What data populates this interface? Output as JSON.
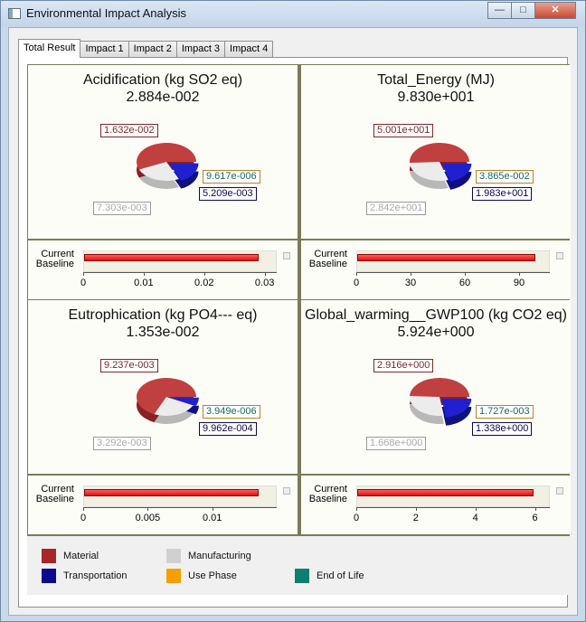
{
  "window": {
    "title": "Environmental Impact Analysis"
  },
  "tabs": [
    "Total Result",
    "Impact 1",
    "Impact 2",
    "Impact 3",
    "Impact 4"
  ],
  "colors": {
    "Material": "#a82828",
    "Manufacturing": "#d0d0d0",
    "Transportation": "#0a0a90",
    "Use Phase": "#f5a000",
    "End of Life": "#0a8070"
  },
  "legend": [
    {
      "label": "Material",
      "color": "#a82828"
    },
    {
      "label": "Manufacturing",
      "color": "#d0d0d0"
    },
    {
      "label": "Transportation",
      "color": "#0a0a90"
    },
    {
      "label": "Use Phase",
      "color": "#f5a000"
    },
    {
      "label": "End of Life",
      "color": "#0a8070"
    }
  ],
  "chart_data": [
    {
      "type": "pie",
      "title": "Acidification (kg SO2 eq)",
      "total": "2.884e-002",
      "slices": [
        {
          "category": "Material",
          "label": "1.632e-002",
          "value": 0.01632
        },
        {
          "category": "Manufacturing",
          "label": "7.303e-003",
          "value": 0.007303
        },
        {
          "category": "Transportation",
          "label": "5.209e-003",
          "value": 0.005209
        },
        {
          "category": "End of Life",
          "label": "9.617e-006",
          "value": 9.617e-06
        }
      ],
      "bar": {
        "type": "bar",
        "categories": [
          "Current",
          "Baseline"
        ],
        "values": [
          0.02884,
          null
        ],
        "xlim": [
          0,
          0.032
        ],
        "ticks": [
          "0",
          "0.01",
          "0.02",
          "0.03"
        ],
        "tickvals": [
          0,
          0.01,
          0.02,
          0.03
        ]
      }
    },
    {
      "type": "pie",
      "title": "Total_Energy (MJ)",
      "total": "9.830e+001",
      "slices": [
        {
          "category": "Material",
          "label": "5.001e+001",
          "value": 50.01
        },
        {
          "category": "Manufacturing",
          "label": "2.842e+001",
          "value": 28.42
        },
        {
          "category": "Transportation",
          "label": "1.983e+001",
          "value": 19.83
        },
        {
          "category": "End of Life",
          "label": "3.865e-002",
          "value": 0.03865
        }
      ],
      "bar": {
        "type": "bar",
        "categories": [
          "Current",
          "Baseline"
        ],
        "values": [
          98.3,
          null
        ],
        "xlim": [
          0,
          107
        ],
        "ticks": [
          "0",
          "30",
          "60",
          "90"
        ],
        "tickvals": [
          0,
          30,
          60,
          90
        ]
      }
    },
    {
      "type": "pie",
      "title": "Eutrophication (kg PO4--- eq)",
      "total": "1.353e-002",
      "slices": [
        {
          "category": "Material",
          "label": "9.237e-003",
          "value": 0.009237
        },
        {
          "category": "Manufacturing",
          "label": "3.292e-003",
          "value": 0.003292
        },
        {
          "category": "Transportation",
          "label": "9.962e-004",
          "value": 0.0009962
        },
        {
          "category": "End of Life",
          "label": "3.949e-006",
          "value": 3.949e-06
        }
      ],
      "bar": {
        "type": "bar",
        "categories": [
          "Current",
          "Baseline"
        ],
        "values": [
          0.01353,
          null
        ],
        "xlim": [
          0,
          0.015
        ],
        "ticks": [
          "0",
          "0.005",
          "0.01"
        ],
        "tickvals": [
          0,
          0.005,
          0.01
        ]
      }
    },
    {
      "type": "pie",
      "title": "Global_warming__GWP100 (kg CO2 eq)",
      "total": "5.924e+000",
      "slices": [
        {
          "category": "Material",
          "label": "2.916e+000",
          "value": 2.916
        },
        {
          "category": "Manufacturing",
          "label": "1.668e+000",
          "value": 1.668
        },
        {
          "category": "Transportation",
          "label": "1.338e+000",
          "value": 1.338
        },
        {
          "category": "End of Life",
          "label": "1.727e-003",
          "value": 0.001727
        }
      ],
      "bar": {
        "type": "bar",
        "categories": [
          "Current",
          "Baseline"
        ],
        "values": [
          5.924,
          null
        ],
        "xlim": [
          0,
          6.5
        ],
        "ticks": [
          "0",
          "2",
          "4",
          "6"
        ],
        "tickvals": [
          0,
          2,
          4,
          6
        ]
      }
    }
  ]
}
